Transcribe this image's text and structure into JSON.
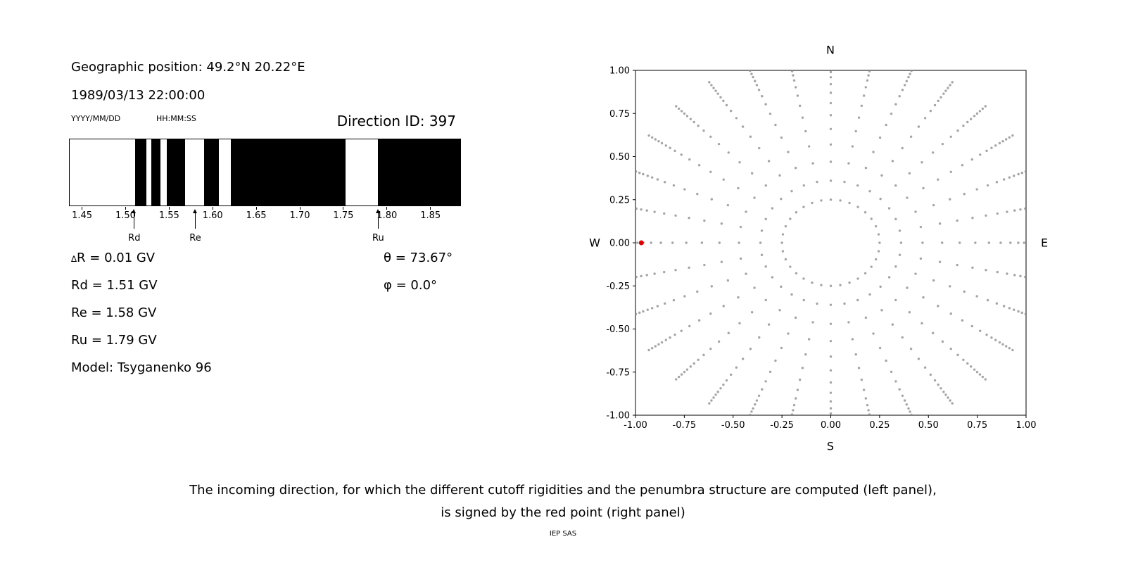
{
  "header": {
    "geo_position": "Geographic position: 49.2°N 20.22°E",
    "datetime": "1989/03/13 22:00:00",
    "date_format_label": "YYYY/MM/DD",
    "time_format_label": "HH:MM:SS",
    "direction_id": "Direction ID: 397"
  },
  "info": {
    "delta_r": {
      "symbol": "∆",
      "rest": "R = 0.01 GV"
    },
    "rd": "Rd = 1.51 GV",
    "re": "Re = 1.58 GV",
    "ru": "Ru = 1.79 GV",
    "model": "Model: Tsyganenko 96",
    "theta": "θ = 73.67°",
    "phi": "φ = 0.0°"
  },
  "chart_data": [
    {
      "type": "heatmap",
      "subtype": "penumbra-barcode",
      "description": "Cosmic ray penumbra structure: black bands = allowed rigidity intervals, white = forbidden",
      "x_range": [
        1.435,
        1.885
      ],
      "xticks": [
        1.45,
        1.5,
        1.55,
        1.6,
        1.65,
        1.7,
        1.75,
        1.8,
        1.85
      ],
      "band_color": "#000000",
      "background_color": "#ffffff",
      "allowed_bands": [
        [
          1.51,
          1.523
        ],
        [
          1.529,
          1.54
        ],
        [
          1.547,
          1.568
        ],
        [
          1.59,
          1.607
        ],
        [
          1.621,
          1.753
        ],
        [
          1.79,
          1.885
        ]
      ],
      "markers": [
        {
          "label": "Rd",
          "x": 1.51
        },
        {
          "label": "Re",
          "x": 1.58
        },
        {
          "label": "Ru",
          "x": 1.79
        }
      ]
    },
    {
      "type": "scatter",
      "description": "Grid of incoming directions shown as radial spokes of gray dots; selected direction marked by red point",
      "xlim": [
        -1,
        1
      ],
      "ylim": [
        -1,
        1
      ],
      "xticks": [
        -1.0,
        -0.75,
        -0.5,
        -0.25,
        0.0,
        0.25,
        0.5,
        0.75,
        1.0
      ],
      "yticks": [
        -1.0,
        -0.75,
        -0.5,
        -0.25,
        0.0,
        0.25,
        0.5,
        0.75,
        1.0
      ],
      "grid": false,
      "compass": {
        "top": "N",
        "bottom": "S",
        "left": "W",
        "right": "E"
      },
      "spokes": {
        "count": 32,
        "radii": [
          0.25,
          0.36,
          0.47,
          0.57,
          0.66,
          0.74,
          0.81,
          0.87,
          0.92,
          0.96,
          0.99,
          1.015,
          1.04,
          1.06,
          1.08,
          1.1,
          1.12
        ],
        "color": "#8f8f8f",
        "opacity": 0.8,
        "dot_radius": 1.7
      },
      "red_point": {
        "x": -0.97,
        "y": 0.0,
        "color": "#e00000",
        "radius": 3.5
      }
    }
  ],
  "caption": {
    "line1": "The incoming direction, for which the different cutoff rigidities and the penumbra structure are computed (left panel),",
    "line2": "is signed by the red point (right panel)"
  },
  "footer": "IEP SAS"
}
